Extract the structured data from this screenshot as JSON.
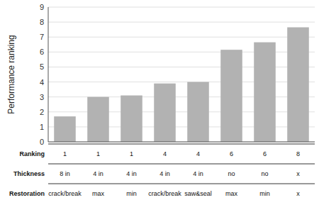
{
  "chart_data": {
    "type": "bar",
    "ylabel": "Performance ranking",
    "categories": [
      null,
      null,
      null,
      null,
      null,
      null,
      null,
      null
    ],
    "values": [
      1.7,
      3.0,
      3.1,
      3.9,
      4.0,
      6.15,
      6.65,
      7.65
    ],
    "color": "#b2b2b2",
    "ylim": [
      0,
      9
    ],
    "yticks": [
      0,
      1,
      2,
      3,
      4,
      5,
      6,
      7,
      8,
      9
    ],
    "grid": true,
    "tick_labels": "y",
    "table": [
      {
        "label": "Ranking",
        "values": [
          "1",
          "1",
          "1",
          "4",
          "4",
          "6",
          "6",
          "8"
        ]
      },
      {
        "label": "Thickness",
        "values": [
          "8 in",
          "4 in",
          "4 in",
          "4 in",
          "4 in",
          "no",
          "no",
          "x"
        ]
      },
      {
        "label": "Restoration",
        "values": [
          "crack/break",
          "max",
          "min",
          "crack/break",
          "saw&seal",
          "max",
          "min",
          "x"
        ]
      }
    ]
  }
}
